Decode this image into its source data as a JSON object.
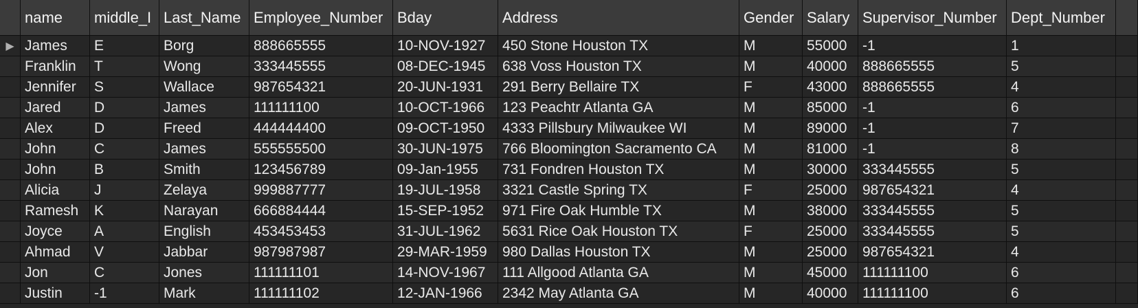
{
  "columns": [
    "name",
    "middle_I",
    "Last_Name",
    "Employee_Number",
    "Bday",
    "Address",
    "Gender",
    "Salary",
    "Supervisor_Number",
    "Dept_Number"
  ],
  "selected_marker": "▶",
  "rows": [
    [
      "James",
      "E",
      "Borg",
      "888665555",
      "10-NOV-1927",
      "450 Stone Houston TX",
      "M",
      "55000",
      "-1",
      "1"
    ],
    [
      "Franklin",
      "T",
      "Wong",
      "333445555",
      "08-DEC-1945",
      "638 Voss Houston TX",
      "M",
      "40000",
      "888665555",
      "5"
    ],
    [
      "Jennifer",
      "S",
      "Wallace",
      "987654321",
      "20-JUN-1931",
      "291 Berry Bellaire TX",
      "F",
      "43000",
      "888665555",
      "4"
    ],
    [
      "Jared",
      "D",
      "James",
      "111111100",
      "10-OCT-1966",
      "123 Peachtr Atlanta GA",
      "M",
      "85000",
      "-1",
      "6"
    ],
    [
      "Alex",
      "D",
      "Freed",
      "444444400",
      "09-OCT-1950",
      "4333 Pillsbury Milwaukee WI",
      "M",
      "89000",
      "-1",
      "7"
    ],
    [
      "John",
      "C",
      "James",
      "555555500",
      "30-JUN-1975",
      "766 Bloomington Sacramento CA",
      "M",
      "81000",
      "-1",
      "8"
    ],
    [
      "John",
      "B",
      "Smith",
      "123456789",
      "09-Jan-1955",
      "731 Fondren Houston TX",
      "M",
      "30000",
      "333445555",
      "5"
    ],
    [
      "Alicia",
      "J",
      "Zelaya",
      "999887777",
      "19-JUL-1958",
      "3321 Castle Spring TX",
      "F",
      "25000",
      "987654321",
      "4"
    ],
    [
      "Ramesh",
      "K",
      "Narayan",
      "666884444",
      "15-SEP-1952",
      "971 Fire Oak Humble TX",
      "M",
      "38000",
      "333445555",
      "5"
    ],
    [
      "Joyce",
      "A",
      "English",
      "453453453",
      "31-JUL-1962",
      "5631 Rice Oak Houston TX",
      "F",
      "25000",
      "333445555",
      "5"
    ],
    [
      "Ahmad",
      "V",
      "Jabbar",
      "987987987",
      "29-MAR-1959",
      "980 Dallas Houston TX",
      "M",
      "25000",
      "987654321",
      "4"
    ],
    [
      "Jon",
      "C",
      "Jones",
      "111111101",
      "14-NOV-1967",
      "111 Allgood Atlanta GA",
      "M",
      "45000",
      "111111100",
      "6"
    ],
    [
      "Justin",
      "-1",
      "Mark",
      "111111102",
      "12-JAN-1966",
      "2342 May Atlanta GA",
      "M",
      "40000",
      "111111100",
      "6"
    ]
  ]
}
